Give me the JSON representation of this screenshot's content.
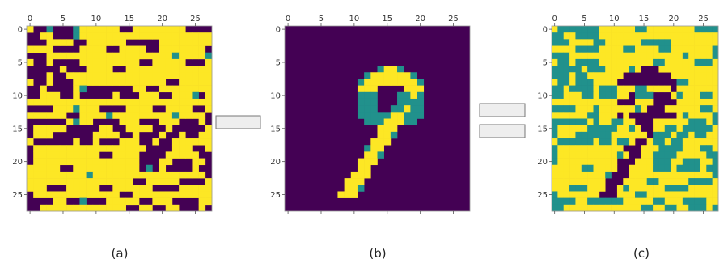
{
  "colors": {
    "background": "#440154",
    "foreground": "#fde725",
    "mid": "#21918c",
    "mid_light": "#5ec962",
    "operator_box_fill": "#eeeeee",
    "operator_box_stroke": "#777777"
  },
  "axis_ticks": [
    "0",
    "5",
    "10",
    "15",
    "20",
    "25"
  ],
  "panels": [
    {
      "caption": "(a)",
      "image_size": 28
    },
    {
      "caption": "(b)",
      "image_size": 28
    },
    {
      "caption": "(c)",
      "image_size": 28
    }
  ],
  "operators": [
    {
      "label": ""
    },
    {
      "label": ""
    },
    {
      "label": ""
    }
  ]
}
